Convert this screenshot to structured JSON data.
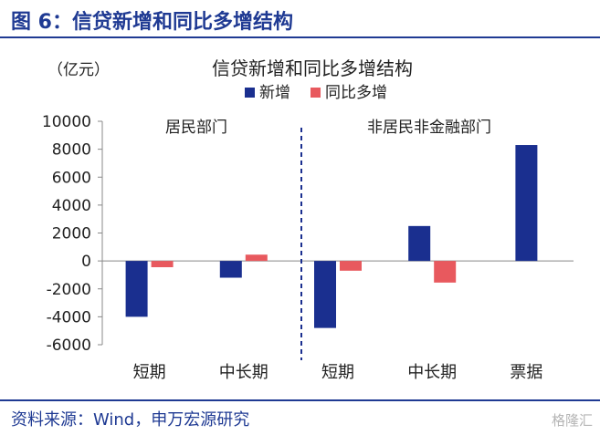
{
  "figure_title": "图 6：信贷新增和同比多增结构",
  "source": "资料来源：Wind，申万宏源研究",
  "watermark": "格隆汇",
  "colors": {
    "series1": "#1a2f8f",
    "series2": "#e8595e",
    "header": "#1f3a93"
  },
  "chart_data": {
    "type": "bar",
    "title": "信贷新增和同比多增结构",
    "unit": "（亿元）",
    "groups": [
      "居民部门",
      "非居民非金融部门"
    ],
    "categories": [
      "短期",
      "中长期",
      "短期",
      "中长期",
      "票据"
    ],
    "series": [
      {
        "name": "新增",
        "values": [
          -4000,
          -1200,
          -4800,
          2500,
          8300
        ]
      },
      {
        "name": "同比多增",
        "values": [
          -450,
          450,
          -700,
          -1550,
          null
        ]
      }
    ],
    "ylim": [
      -6000,
      10000
    ],
    "yticks": [
      10000,
      8000,
      6000,
      4000,
      2000,
      0,
      -2000,
      -4000,
      -6000
    ],
    "legend_position": "top",
    "grid": false
  }
}
